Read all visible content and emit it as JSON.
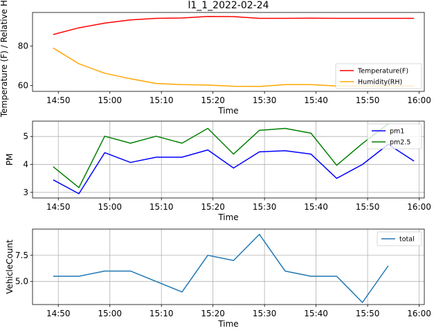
{
  "figure_title": "l1_1_2022-02-24",
  "chart_data": [
    {
      "type": "line",
      "xlabel": "Time",
      "ylabel": "Temperature (F) / Relative Hum",
      "xlim": [
        "14:45",
        "16:01"
      ],
      "ylim": [
        57,
        97
      ],
      "x_ticks": [
        "14:50",
        "15:00",
        "15:10",
        "15:20",
        "15:30",
        "15:40",
        "15:50",
        "16:00"
      ],
      "y_ticks": [
        60,
        80
      ],
      "grid": false,
      "legend_position": "lower-right",
      "x": [
        "14:49",
        "14:54",
        "14:59",
        "15:04",
        "15:09",
        "15:14",
        "15:19",
        "15:24",
        "15:29",
        "15:34",
        "15:39",
        "15:44",
        "15:49",
        "15:54",
        "15:59"
      ],
      "series": [
        {
          "name": "Temperature(F)",
          "color": "#ff0000",
          "values": [
            85.8,
            89.2,
            91.6,
            93.2,
            94.0,
            94.2,
            95.0,
            94.9,
            94.0,
            94.0,
            94.1,
            94.0,
            94.0,
            94.0,
            94.0
          ]
        },
        {
          "name": "Humidity(RH)",
          "color": "#ffa500",
          "values": [
            79.0,
            71.0,
            66.2,
            63.4,
            61.0,
            60.4,
            60.2,
            59.6,
            59.5,
            60.4,
            60.4,
            59.7,
            59.7,
            59.7,
            59.7
          ]
        }
      ]
    },
    {
      "type": "line",
      "xlabel": "Time",
      "ylabel": "PM",
      "xlim": [
        "14:45",
        "16:01"
      ],
      "ylim": [
        2.8,
        5.55
      ],
      "x_ticks": [
        "14:50",
        "15:00",
        "15:10",
        "15:20",
        "15:30",
        "15:40",
        "15:50",
        "16:00"
      ],
      "y_ticks": [
        3,
        4,
        5
      ],
      "grid": true,
      "legend_position": "upper-right",
      "x": [
        "14:49",
        "14:54",
        "14:59",
        "15:04",
        "15:09",
        "15:14",
        "15:19",
        "15:24",
        "15:29",
        "15:34",
        "15:39",
        "15:44",
        "15:49",
        "15:54",
        "15:59"
      ],
      "series": [
        {
          "name": "pm1",
          "color": "#0000ff",
          "values": [
            3.45,
            2.95,
            4.42,
            4.07,
            4.26,
            4.26,
            4.52,
            3.87,
            4.45,
            4.49,
            4.37,
            3.5,
            4.0,
            4.72,
            4.12
          ]
        },
        {
          "name": "pm2.5",
          "color": "#008000",
          "values": [
            3.92,
            3.17,
            5.01,
            4.76,
            5.01,
            4.76,
            5.29,
            4.37,
            5.22,
            5.29,
            5.12,
            3.97,
            4.75,
            5.45,
            null
          ]
        }
      ]
    },
    {
      "type": "line",
      "xlabel": "Time",
      "ylabel": "VehicleCount",
      "xlim": [
        "14:45",
        "16:01"
      ],
      "ylim": [
        2.8,
        10.0
      ],
      "x_ticks": [
        "14:50",
        "15:00",
        "15:10",
        "15:20",
        "15:30",
        "15:40",
        "15:50",
        "16:00"
      ],
      "y_ticks": [
        "5.0",
        "7.5"
      ],
      "grid": true,
      "legend_position": "upper-right",
      "x": [
        "14:49",
        "14:54",
        "14:59",
        "15:04",
        "15:09",
        "15:14",
        "15:19",
        "15:24",
        "15:29",
        "15:34",
        "15:39",
        "15:44",
        "15:49",
        "15:54"
      ],
      "series": [
        {
          "name": "total",
          "color": "#1f77b4",
          "values": [
            5.5,
            5.5,
            6.0,
            6.0,
            5.0,
            4.0,
            7.5,
            7.0,
            9.5,
            6.0,
            5.5,
            5.5,
            3.0,
            6.5
          ]
        }
      ]
    }
  ]
}
